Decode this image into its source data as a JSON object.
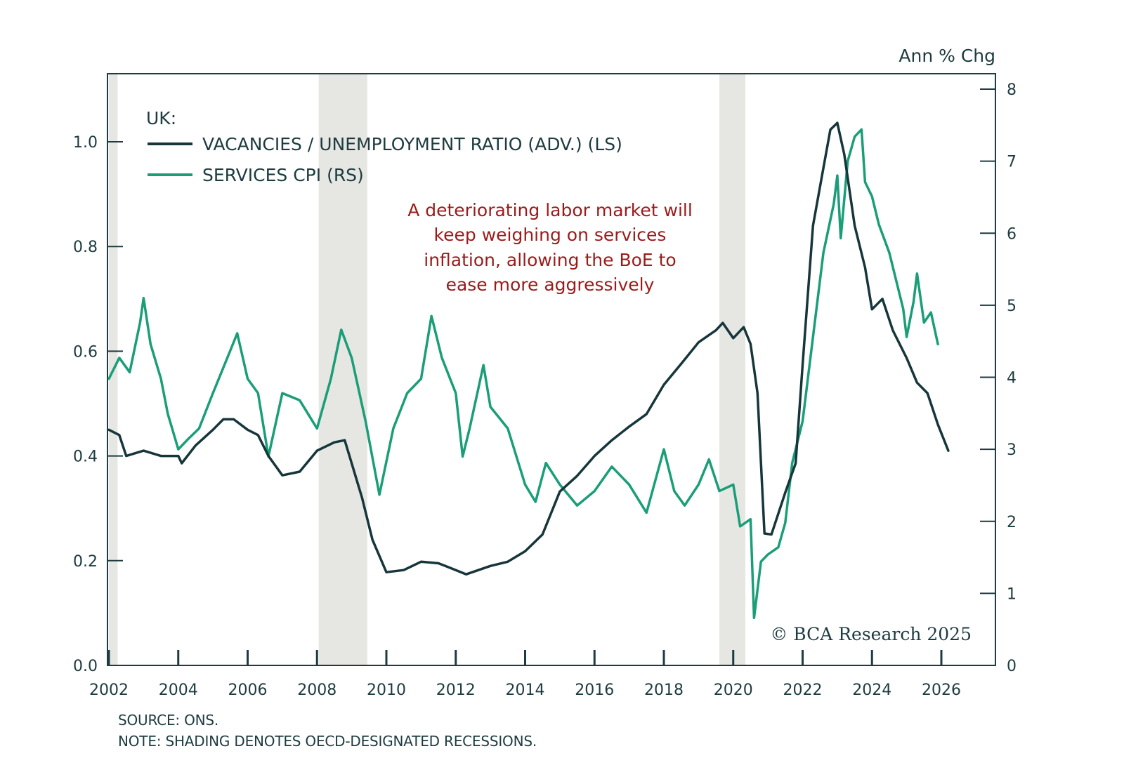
{
  "chart_data": {
    "type": "line",
    "title": "",
    "legend_header": "UK:",
    "legend_placement": "top-left",
    "right_axis_title": "Ann % Chg",
    "annotation": [
      "A deteriorating labor market will",
      "keep weighing on services",
      "inflation, allowing the BoE to",
      "ease more aggressively"
    ],
    "copyright": "© BCA Research 2025",
    "x_ticks": [
      "2002",
      "2004",
      "2006",
      "2008",
      "2010",
      "2012",
      "2014",
      "2016",
      "2018",
      "2020",
      "2022",
      "2024",
      "2026"
    ],
    "xlim": [
      2002,
      2027.5
    ],
    "left_axis": {
      "ylim": [
        0,
        1.12
      ],
      "ticks": [
        "0.0",
        "0.2",
        "0.4",
        "0.6",
        "0.8",
        "1.0"
      ]
    },
    "right_axis": {
      "ylim": [
        0,
        8.2
      ],
      "ticks": [
        "0",
        "1",
        "2",
        "3",
        "4",
        "5",
        "6",
        "7",
        "8"
      ]
    },
    "recessions": [
      [
        2002.0,
        2002.25
      ],
      [
        2008.05,
        2009.45
      ],
      [
        2019.6,
        2020.35
      ]
    ],
    "series": [
      {
        "name": "VACANCIES / UNEMPLOYMENT RATIO (ADV.) (LS)",
        "axis": "left",
        "color": "#17363b",
        "x": [
          2002.0,
          2002.3,
          2002.5,
          2003.0,
          2003.5,
          2004.0,
          2004.1,
          2004.5,
          2005.0,
          2005.3,
          2005.6,
          2006.0,
          2006.3,
          2006.6,
          2007.0,
          2007.5,
          2008.0,
          2008.5,
          2008.8,
          2009.0,
          2009.3,
          2009.6,
          2010.0,
          2010.5,
          2011.0,
          2011.5,
          2012.0,
          2012.3,
          2013.0,
          2013.5,
          2014.0,
          2014.5,
          2015.0,
          2015.5,
          2016.0,
          2016.5,
          2017.0,
          2017.5,
          2018.0,
          2018.5,
          2019.0,
          2019.5,
          2019.7,
          2020.0,
          2020.3,
          2020.5,
          2020.7,
          2020.9,
          2021.1,
          2021.5,
          2021.8,
          2022.0,
          2022.3,
          2022.6,
          2022.8,
          2023.0,
          2023.2,
          2023.5,
          2023.8,
          2024.0,
          2024.3,
          2024.6,
          2025.0,
          2025.3,
          2025.6,
          2025.9,
          2026.2
        ],
        "values": [
          0.45,
          0.44,
          0.4,
          0.41,
          0.4,
          0.4,
          0.386,
          0.42,
          0.45,
          0.47,
          0.47,
          0.45,
          0.44,
          0.4,
          0.363,
          0.37,
          0.41,
          0.426,
          0.43,
          0.386,
          0.32,
          0.24,
          0.178,
          0.182,
          0.198,
          0.195,
          0.182,
          0.174,
          0.19,
          0.198,
          0.218,
          0.25,
          0.332,
          0.362,
          0.4,
          0.43,
          0.456,
          0.48,
          0.536,
          0.576,
          0.617,
          0.64,
          0.654,
          0.625,
          0.646,
          0.614,
          0.52,
          0.252,
          0.25,
          0.33,
          0.386,
          0.574,
          0.84,
          0.95,
          1.023,
          1.036,
          0.976,
          0.84,
          0.76,
          0.68,
          0.7,
          0.64,
          0.587,
          0.54,
          0.52,
          0.46,
          0.41
        ]
      },
      {
        "name": "SERVICES CPI (RS)",
        "axis": "right",
        "color": "#1a9e78",
        "x": [
          2002.0,
          2002.3,
          2002.6,
          2002.9,
          2003.0,
          2003.2,
          2003.5,
          2003.7,
          2004.0,
          2004.3,
          2004.6,
          2005.0,
          2005.5,
          2005.7,
          2006.0,
          2006.3,
          2006.6,
          2007.0,
          2007.5,
          2008.0,
          2008.4,
          2008.7,
          2009.0,
          2009.4,
          2009.8,
          2010.2,
          2010.6,
          2011.0,
          2011.3,
          2011.6,
          2012.0,
          2012.2,
          2012.4,
          2012.8,
          2013.0,
          2013.5,
          2014.0,
          2014.3,
          2014.6,
          2015.0,
          2015.5,
          2016.0,
          2016.5,
          2017.0,
          2017.5,
          2018.0,
          2018.3,
          2018.6,
          2019.0,
          2019.3,
          2019.6,
          2020.0,
          2020.2,
          2020.5,
          2020.6,
          2020.8,
          2021.0,
          2021.3,
          2021.5,
          2021.7,
          2022.0,
          2022.3,
          2022.6,
          2022.9,
          2023.0,
          2023.1,
          2023.3,
          2023.5,
          2023.7,
          2023.8,
          2024.0,
          2024.2,
          2024.5,
          2024.7,
          2024.9,
          2025.0,
          2025.2,
          2025.3,
          2025.5,
          2025.7,
          2025.9
        ],
        "values": [
          3.98,
          4.27,
          4.07,
          4.76,
          5.1,
          4.46,
          3.98,
          3.49,
          3.0,
          3.15,
          3.29,
          3.78,
          4.37,
          4.61,
          3.98,
          3.78,
          2.9,
          3.78,
          3.68,
          3.29,
          3.98,
          4.66,
          4.27,
          3.39,
          2.37,
          3.29,
          3.78,
          3.98,
          4.85,
          4.27,
          3.78,
          2.9,
          3.29,
          4.17,
          3.59,
          3.29,
          2.51,
          2.27,
          2.81,
          2.51,
          2.22,
          2.42,
          2.76,
          2.51,
          2.12,
          3.0,
          2.42,
          2.22,
          2.51,
          2.86,
          2.42,
          2.51,
          1.93,
          2.03,
          0.66,
          1.44,
          1.54,
          1.64,
          1.98,
          2.81,
          3.39,
          4.56,
          5.73,
          6.41,
          6.8,
          5.93,
          7.0,
          7.34,
          7.44,
          6.71,
          6.51,
          6.12,
          5.73,
          5.34,
          4.95,
          4.56,
          5.05,
          5.44,
          4.76,
          4.9,
          4.46
        ]
      }
    ]
  },
  "footer": {
    "source": "SOURCE: ONS.",
    "note": "NOTE: SHADING DENOTES OECD-DESIGNATED RECESSIONS."
  }
}
